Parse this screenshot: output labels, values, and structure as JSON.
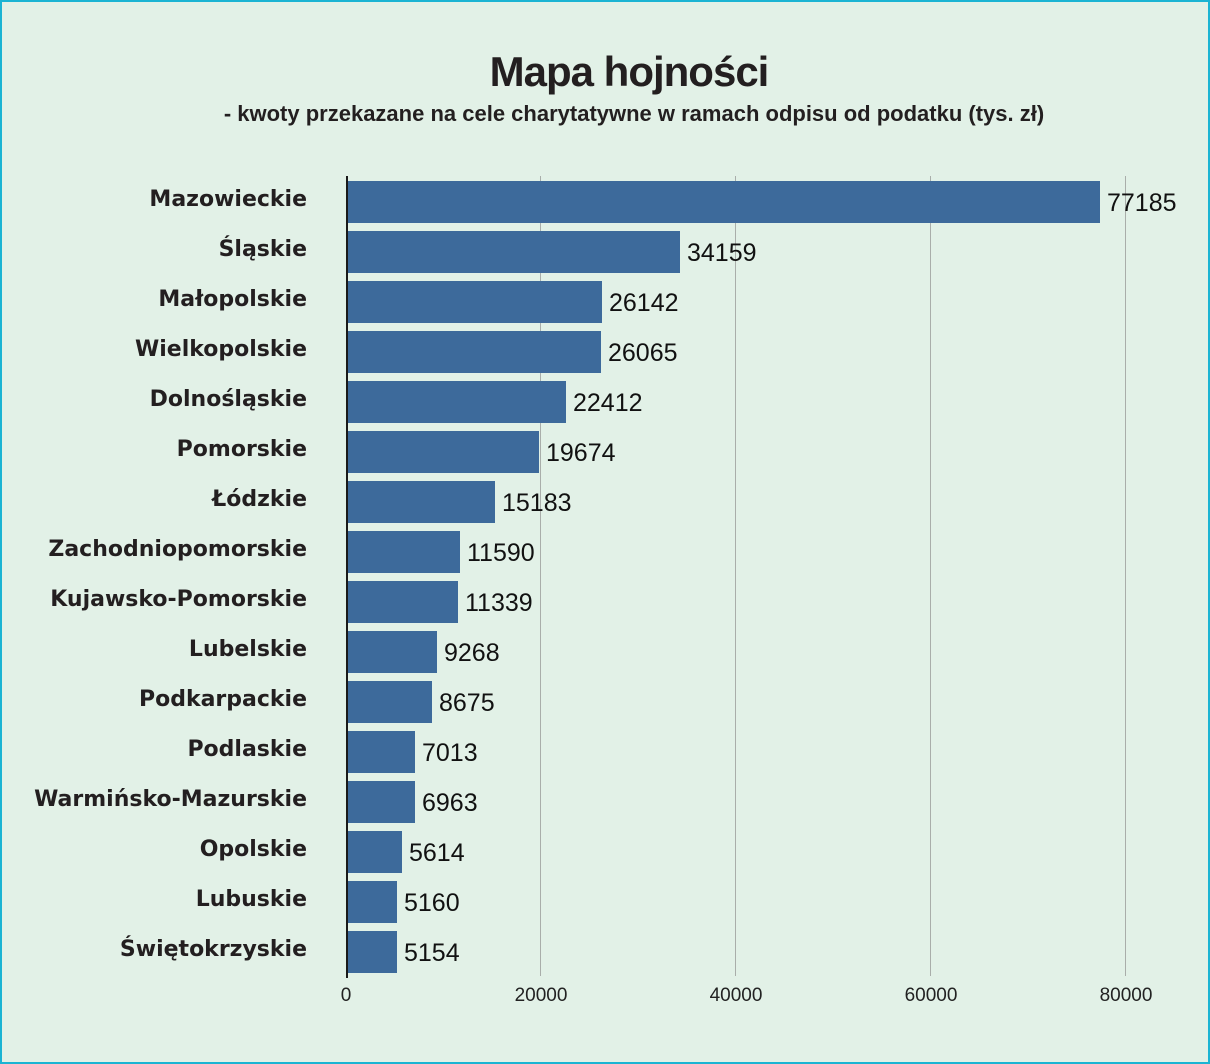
{
  "title": "Mapa hojności",
  "subtitle": "- kwoty przekazane na cele charytatywne w ramach odpisu od podatku (tys. zł)",
  "colors": {
    "bar": "#3d6a9b",
    "background": "#e2f1e7",
    "frame": "#1bb4d3",
    "grid": "#a9aeaa"
  },
  "axis": {
    "ticks": [
      "0",
      "20000",
      "40000",
      "60000",
      "80000"
    ]
  },
  "rows": [
    {
      "label": "Mazowieckie",
      "value": "77185"
    },
    {
      "label": "Śląskie",
      "value": "34159"
    },
    {
      "label": "Małopolskie",
      "value": "26142"
    },
    {
      "label": "Wielkopolskie",
      "value": "26065"
    },
    {
      "label": "Dolnośląskie",
      "value": "22412"
    },
    {
      "label": "Pomorskie",
      "value": "19674"
    },
    {
      "label": "Łódzkie",
      "value": "15183"
    },
    {
      "label": "Zachodniopomorskie",
      "value": "11590"
    },
    {
      "label": "Kujawsko-Pomorskie",
      "value": "11339"
    },
    {
      "label": "Lubelskie",
      "value": "9268"
    },
    {
      "label": "Podkarpackie",
      "value": "8675"
    },
    {
      "label": "Podlaskie",
      "value": "7013"
    },
    {
      "label": "Warmińsko-Mazurskie",
      "value": "6963"
    },
    {
      "label": "Opolskie",
      "value": "5614"
    },
    {
      "label": "Lubuskie",
      "value": "5160"
    },
    {
      "label": "Świętokrzyskie",
      "value": "5154"
    }
  ],
  "chart_data": {
    "type": "bar",
    "orientation": "horizontal",
    "title": "Mapa hojności",
    "subtitle": "- kwoty przekazane na cele charytatywne w ramach odpisu od podatku (tys. zł)",
    "categories": [
      "Mazowieckie",
      "Śląskie",
      "Małopolskie",
      "Wielkopolskie",
      "Dolnośląskie",
      "Pomorskie",
      "Łódzkie",
      "Zachodniopomorskie",
      "Kujawsko-Pomorskie",
      "Lubelskie",
      "Podkarpackie",
      "Podlaskie",
      "Warmińsko-Mazurskie",
      "Opolskie",
      "Lubuskie",
      "Świętokrzyskie"
    ],
    "values": [
      77185,
      34159,
      26142,
      26065,
      22412,
      19674,
      15183,
      11590,
      11339,
      9268,
      8675,
      7013,
      6963,
      5614,
      5160,
      5154
    ],
    "xlabel": "",
    "ylabel": "",
    "xlim": [
      0,
      80000
    ],
    "xticks": [
      0,
      20000,
      40000,
      60000,
      80000
    ],
    "grid": "vertical",
    "legend": "none",
    "data_labels": true
  }
}
